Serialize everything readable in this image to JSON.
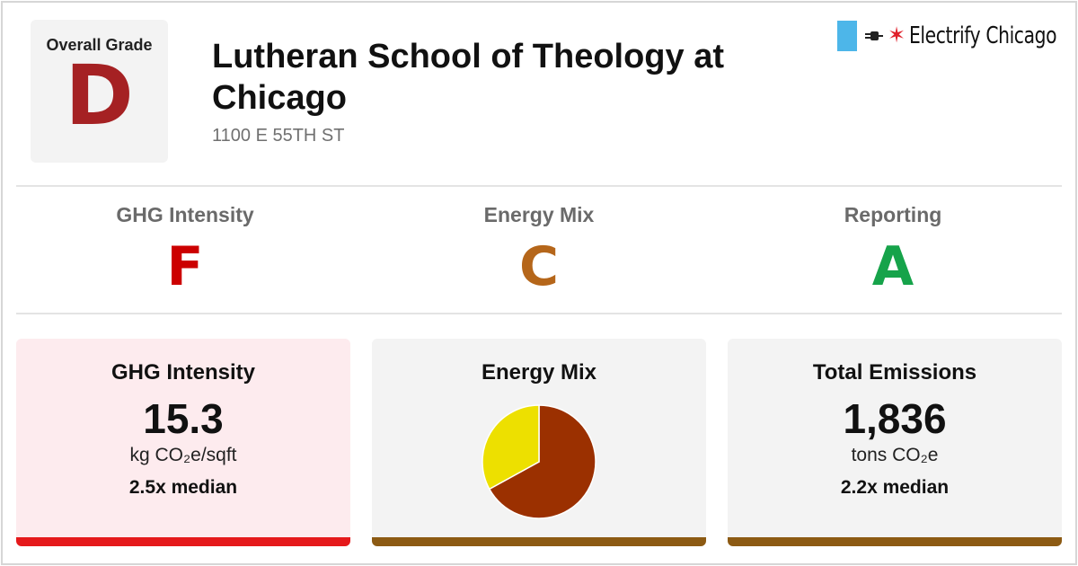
{
  "overall": {
    "label": "Overall Grade",
    "grade": "D",
    "color": "#a52123"
  },
  "building": {
    "name": "Lutheran School of Theology at Chicago",
    "address": "1100 E 55TH ST"
  },
  "brand": {
    "name": "Electrify Chicago",
    "flag_color": "#4db6e9",
    "star_glyph": "✶",
    "icon": "plug-icon"
  },
  "subgrades": [
    {
      "label": "GHG Intensity",
      "grade": "F",
      "color": "#cc0000"
    },
    {
      "label": "Energy Mix",
      "grade": "C",
      "color": "#b5661a"
    },
    {
      "label": "Reporting",
      "grade": "A",
      "color": "#16a34a"
    }
  ],
  "cards": {
    "ghg": {
      "title": "GHG Intensity",
      "value": "15.3",
      "unit": "kg CO₂e/sqft",
      "median": "2.5x median",
      "bg": "#fdebee",
      "bar_color": "#e5191b"
    },
    "mix": {
      "title": "Energy Mix",
      "bg": "#f3f3f3",
      "bar_color": "#8c5a13"
    },
    "total": {
      "title": "Total Emissions",
      "value": "1,836",
      "unit": "tons CO₂e",
      "median": "2.2x median",
      "bg": "#f3f3f3",
      "bar_color": "#8c5a13"
    }
  },
  "chart_data": {
    "type": "pie",
    "slices": [
      {
        "value": 67,
        "color": "#9b3000"
      },
      {
        "value": 33,
        "color": "#ede000"
      }
    ]
  }
}
